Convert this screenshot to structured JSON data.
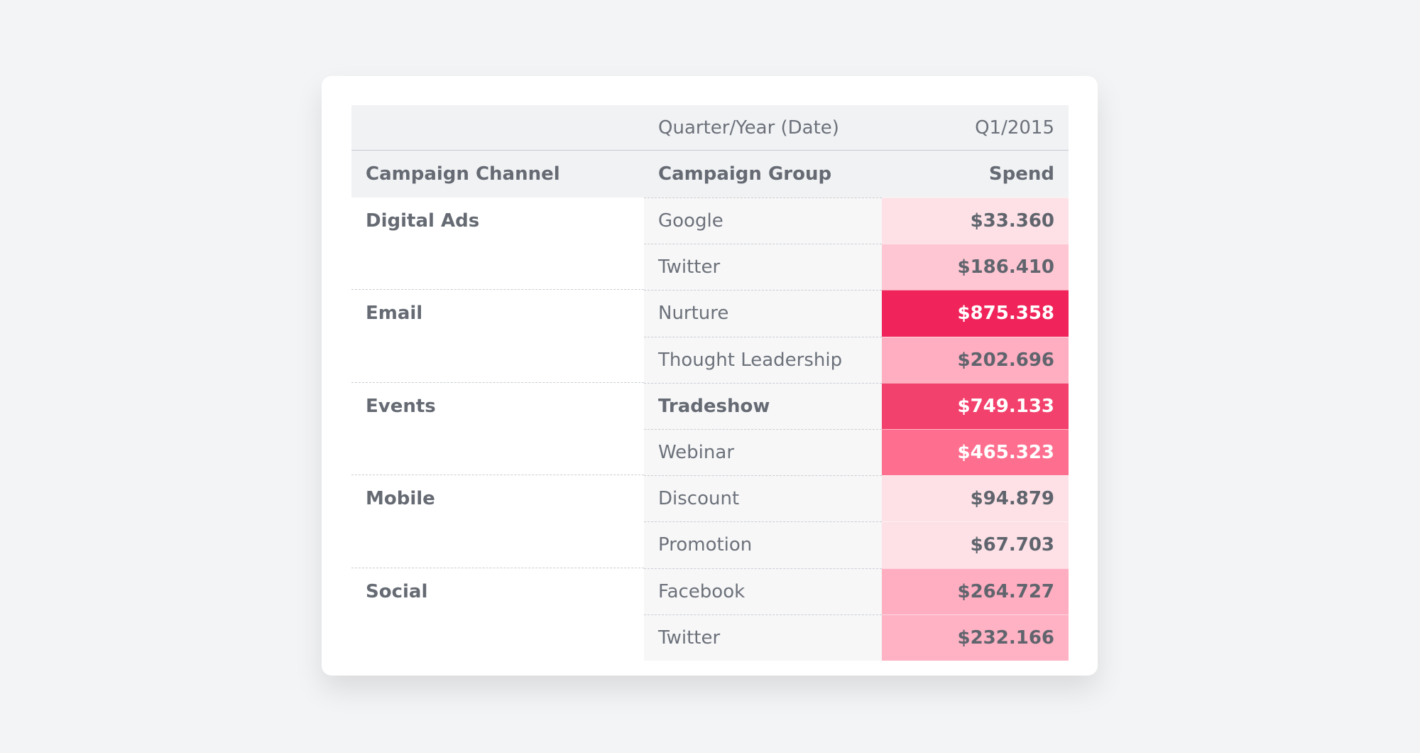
{
  "header": {
    "date_label": "Quarter/Year (Date)",
    "period": "Q1/2015"
  },
  "columns": [
    "Campaign Channel",
    "Campaign Group",
    "Spend"
  ],
  "groups": [
    {
      "channel": "Digital Ads",
      "rows": [
        {
          "group": "Google",
          "spend": "$33.360",
          "color": "#fde1e6",
          "text_color": "#5f646d"
        },
        {
          "group": "Twitter",
          "spend": "$186.410",
          "color": "#fec6d2",
          "text_color": "#5f646d"
        }
      ]
    },
    {
      "channel": "Email",
      "rows": [
        {
          "group": "Nurture",
          "spend": "$875.358",
          "color": "#f0245a",
          "text_color": "#ffffff"
        },
        {
          "group": "Thought Leadership",
          "spend": "$202.696",
          "color": "#feaec0",
          "text_color": "#5f646d"
        }
      ]
    },
    {
      "channel": "Events",
      "rows": [
        {
          "group": "Tradeshow",
          "spend": "$749.133",
          "color": "#f2416c",
          "text_color": "#ffffff",
          "highlighted": true
        },
        {
          "group": "Webinar",
          "spend": "$465.323",
          "color": "#fe6f8f",
          "text_color": "#ffffff"
        }
      ]
    },
    {
      "channel": "Mobile",
      "rows": [
        {
          "group": "Discount",
          "spend": "$94.879",
          "color": "#fde1e6",
          "text_color": "#5f646d"
        },
        {
          "group": "Promotion",
          "spend": "$67.703",
          "color": "#fde1e6",
          "text_color": "#5f646d"
        }
      ]
    },
    {
      "channel": "Social",
      "rows": [
        {
          "group": "Facebook",
          "spend": "$264.727",
          "color": "#feaec0",
          "text_color": "#5f646d"
        },
        {
          "group": "Twitter",
          "spend": "$232.166",
          "color": "#feb2c4",
          "text_color": "#5f646d"
        }
      ]
    }
  ]
}
